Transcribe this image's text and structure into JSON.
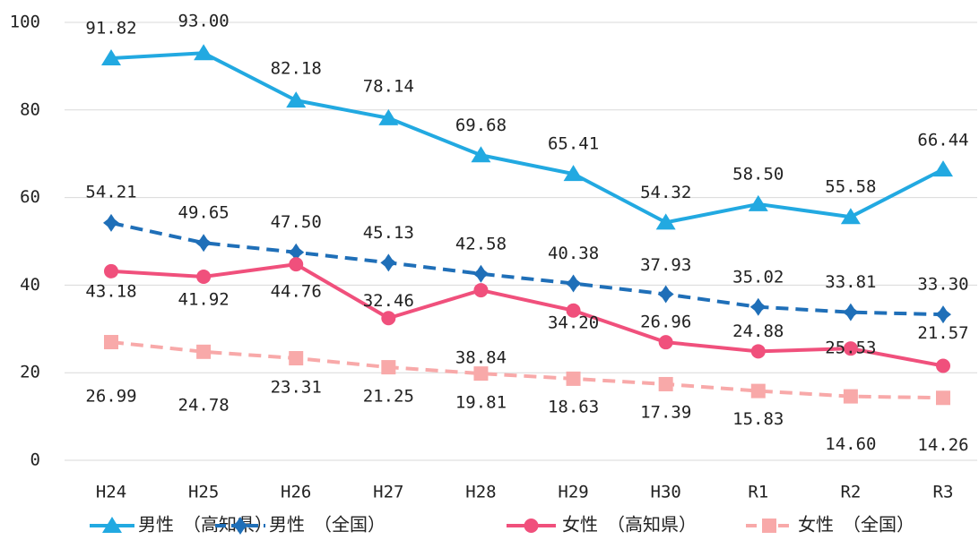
{
  "chart_data": {
    "type": "line",
    "categories": [
      "H24",
      "H25",
      "H26",
      "H27",
      "H28",
      "H29",
      "H30",
      "R1",
      "R2",
      "R3"
    ],
    "ylim": [
      0,
      100
    ],
    "yticks": [
      0,
      20,
      40,
      60,
      80,
      100
    ],
    "grid": true,
    "series": [
      {
        "name": "男性　（高知県）",
        "color": "#22a9e1",
        "dashed": false,
        "marker": "triangle",
        "values": [
          91.82,
          93,
          82.18,
          78.14,
          69.68,
          65.41,
          54.32,
          58.5,
          55.58,
          66.44
        ],
        "value_labels": [
          "91.82",
          "93.00",
          "82.18",
          "78.14",
          "69.68",
          "65.41",
          "54.32",
          "58.50",
          "55.58",
          "66.44"
        ]
      },
      {
        "name": "男性　（全国）",
        "color": "#1f6fb8",
        "dashed": true,
        "marker": "diamond",
        "values": [
          54.21,
          49.65,
          47.5,
          45.13,
          42.58,
          40.38,
          37.93,
          35.02,
          33.81,
          33.3
        ],
        "value_labels": [
          "54.21",
          "49.65",
          "47.50",
          "45.13",
          "42.58",
          "40.38",
          "37.93",
          "35.02",
          "33.81",
          "33.30"
        ]
      },
      {
        "name": "女性　（高知県）",
        "color": "#f0507c",
        "dashed": false,
        "marker": "circle",
        "values": [
          43.18,
          41.92,
          44.76,
          32.46,
          38.84,
          34.2,
          26.96,
          24.88,
          25.53,
          21.57
        ],
        "value_labels": [
          "43.18",
          "41.92",
          "44.76",
          "32.46",
          "38.84",
          "34.20",
          "26.96",
          "24.88",
          "25.53",
          "21.57"
        ]
      },
      {
        "name": "女性　（全国）",
        "color": "#f8a9a9",
        "dashed": true,
        "marker": "square",
        "values": [
          26.99,
          24.78,
          23.31,
          21.25,
          19.81,
          18.63,
          17.39,
          15.83,
          14.6,
          14.26
        ],
        "value_labels": [
          "26.99",
          "24.78",
          "23.31",
          "21.25",
          "19.81",
          "18.63",
          "17.39",
          "15.83",
          "14.60",
          "14.26"
        ]
      }
    ]
  }
}
